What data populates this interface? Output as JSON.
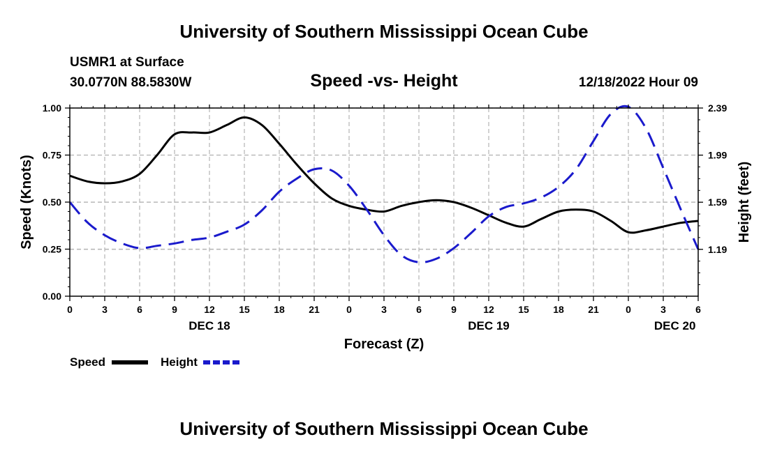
{
  "header": {
    "title": "University of Southern Mississippi Ocean Cube",
    "station": "USMR1 at Surface",
    "coords": "30.0770N  88.5830W",
    "datetime": "12/18/2022 Hour 09",
    "footer_title": "University of Southern Mississippi Ocean Cube"
  },
  "colors": {
    "speed": "#000000",
    "height": "#1a1acc",
    "grid": "#b4b4b4"
  },
  "chart_data": {
    "type": "line",
    "title": "Speed -vs- Height",
    "xlabel": "Forecast (Z)",
    "ylabel": "Speed (Knots)",
    "ylabel_right": "Height (feet)",
    "xlim": [
      0,
      54
    ],
    "ylim": [
      0,
      1
    ],
    "ylim_right": [
      0.792,
      2.39
    ],
    "x_ticks": [
      0,
      3,
      6,
      9,
      12,
      15,
      18,
      21,
      24,
      27,
      30,
      33,
      36,
      39,
      42,
      45,
      48,
      51,
      54
    ],
    "x_tick_labels": [
      "0",
      "3",
      "6",
      "9",
      "12",
      "15",
      "18",
      "21",
      "0",
      "3",
      "6",
      "9",
      "12",
      "15",
      "18",
      "21",
      "0",
      "3",
      "6"
    ],
    "y_ticks": [
      0.0,
      0.25,
      0.5,
      0.75,
      1.0
    ],
    "y_tick_labels": [
      "0.00",
      "0.25",
      "0.50",
      "0.75",
      "1.00"
    ],
    "y2_ticks": [
      1.19,
      1.59,
      1.99,
      2.39
    ],
    "y2_tick_labels": [
      "1.19",
      "1.59",
      "1.99",
      "2.39"
    ],
    "date_labels": [
      {
        "x": 12,
        "label": "DEC 18"
      },
      {
        "x": 36,
        "label": "DEC 19"
      },
      {
        "x": 52,
        "label": "DEC 20"
      }
    ],
    "legend": {
      "position": "bottom-left",
      "entries": [
        "Speed",
        "Height"
      ]
    },
    "series": [
      {
        "name": "Speed",
        "axis": "left",
        "style": "solid",
        "x": [
          0,
          1.5,
          3,
          4.5,
          6,
          7.5,
          9,
          10.5,
          12,
          13.5,
          15,
          16.5,
          18,
          19.5,
          21,
          22.5,
          24,
          25.5,
          27,
          28.5,
          30,
          31.5,
          33,
          34.5,
          36,
          37.5,
          39,
          40.5,
          42,
          43.5,
          45,
          46.5,
          48,
          49.5,
          51,
          52.5,
          54
        ],
        "values": [
          0.64,
          0.61,
          0.6,
          0.61,
          0.65,
          0.75,
          0.86,
          0.87,
          0.87,
          0.91,
          0.95,
          0.91,
          0.81,
          0.7,
          0.6,
          0.52,
          0.48,
          0.46,
          0.45,
          0.48,
          0.5,
          0.51,
          0.5,
          0.47,
          0.43,
          0.39,
          0.37,
          0.41,
          0.45,
          0.46,
          0.45,
          0.4,
          0.34,
          0.35,
          0.37,
          0.39,
          0.4
        ]
      },
      {
        "name": "Height",
        "axis": "right",
        "style": "dashed",
        "x": [
          0,
          1.5,
          3,
          4.5,
          6,
          7.5,
          9,
          10.5,
          12,
          13.5,
          15,
          16.5,
          18,
          19.5,
          21,
          22.5,
          24,
          25.5,
          27,
          28.5,
          30,
          31.5,
          33,
          34.5,
          36,
          37.5,
          39,
          40.5,
          42,
          43.5,
          45,
          46.5,
          48,
          49.5,
          51,
          52.5,
          54
        ],
        "values": [
          1.59,
          1.42,
          1.31,
          1.24,
          1.2,
          1.22,
          1.24,
          1.27,
          1.29,
          1.34,
          1.4,
          1.52,
          1.68,
          1.79,
          1.87,
          1.86,
          1.73,
          1.53,
          1.31,
          1.14,
          1.08,
          1.11,
          1.2,
          1.33,
          1.47,
          1.55,
          1.58,
          1.63,
          1.72,
          1.87,
          2.11,
          2.34,
          2.4,
          2.22,
          1.88,
          1.53,
          1.19
        ]
      }
    ]
  }
}
